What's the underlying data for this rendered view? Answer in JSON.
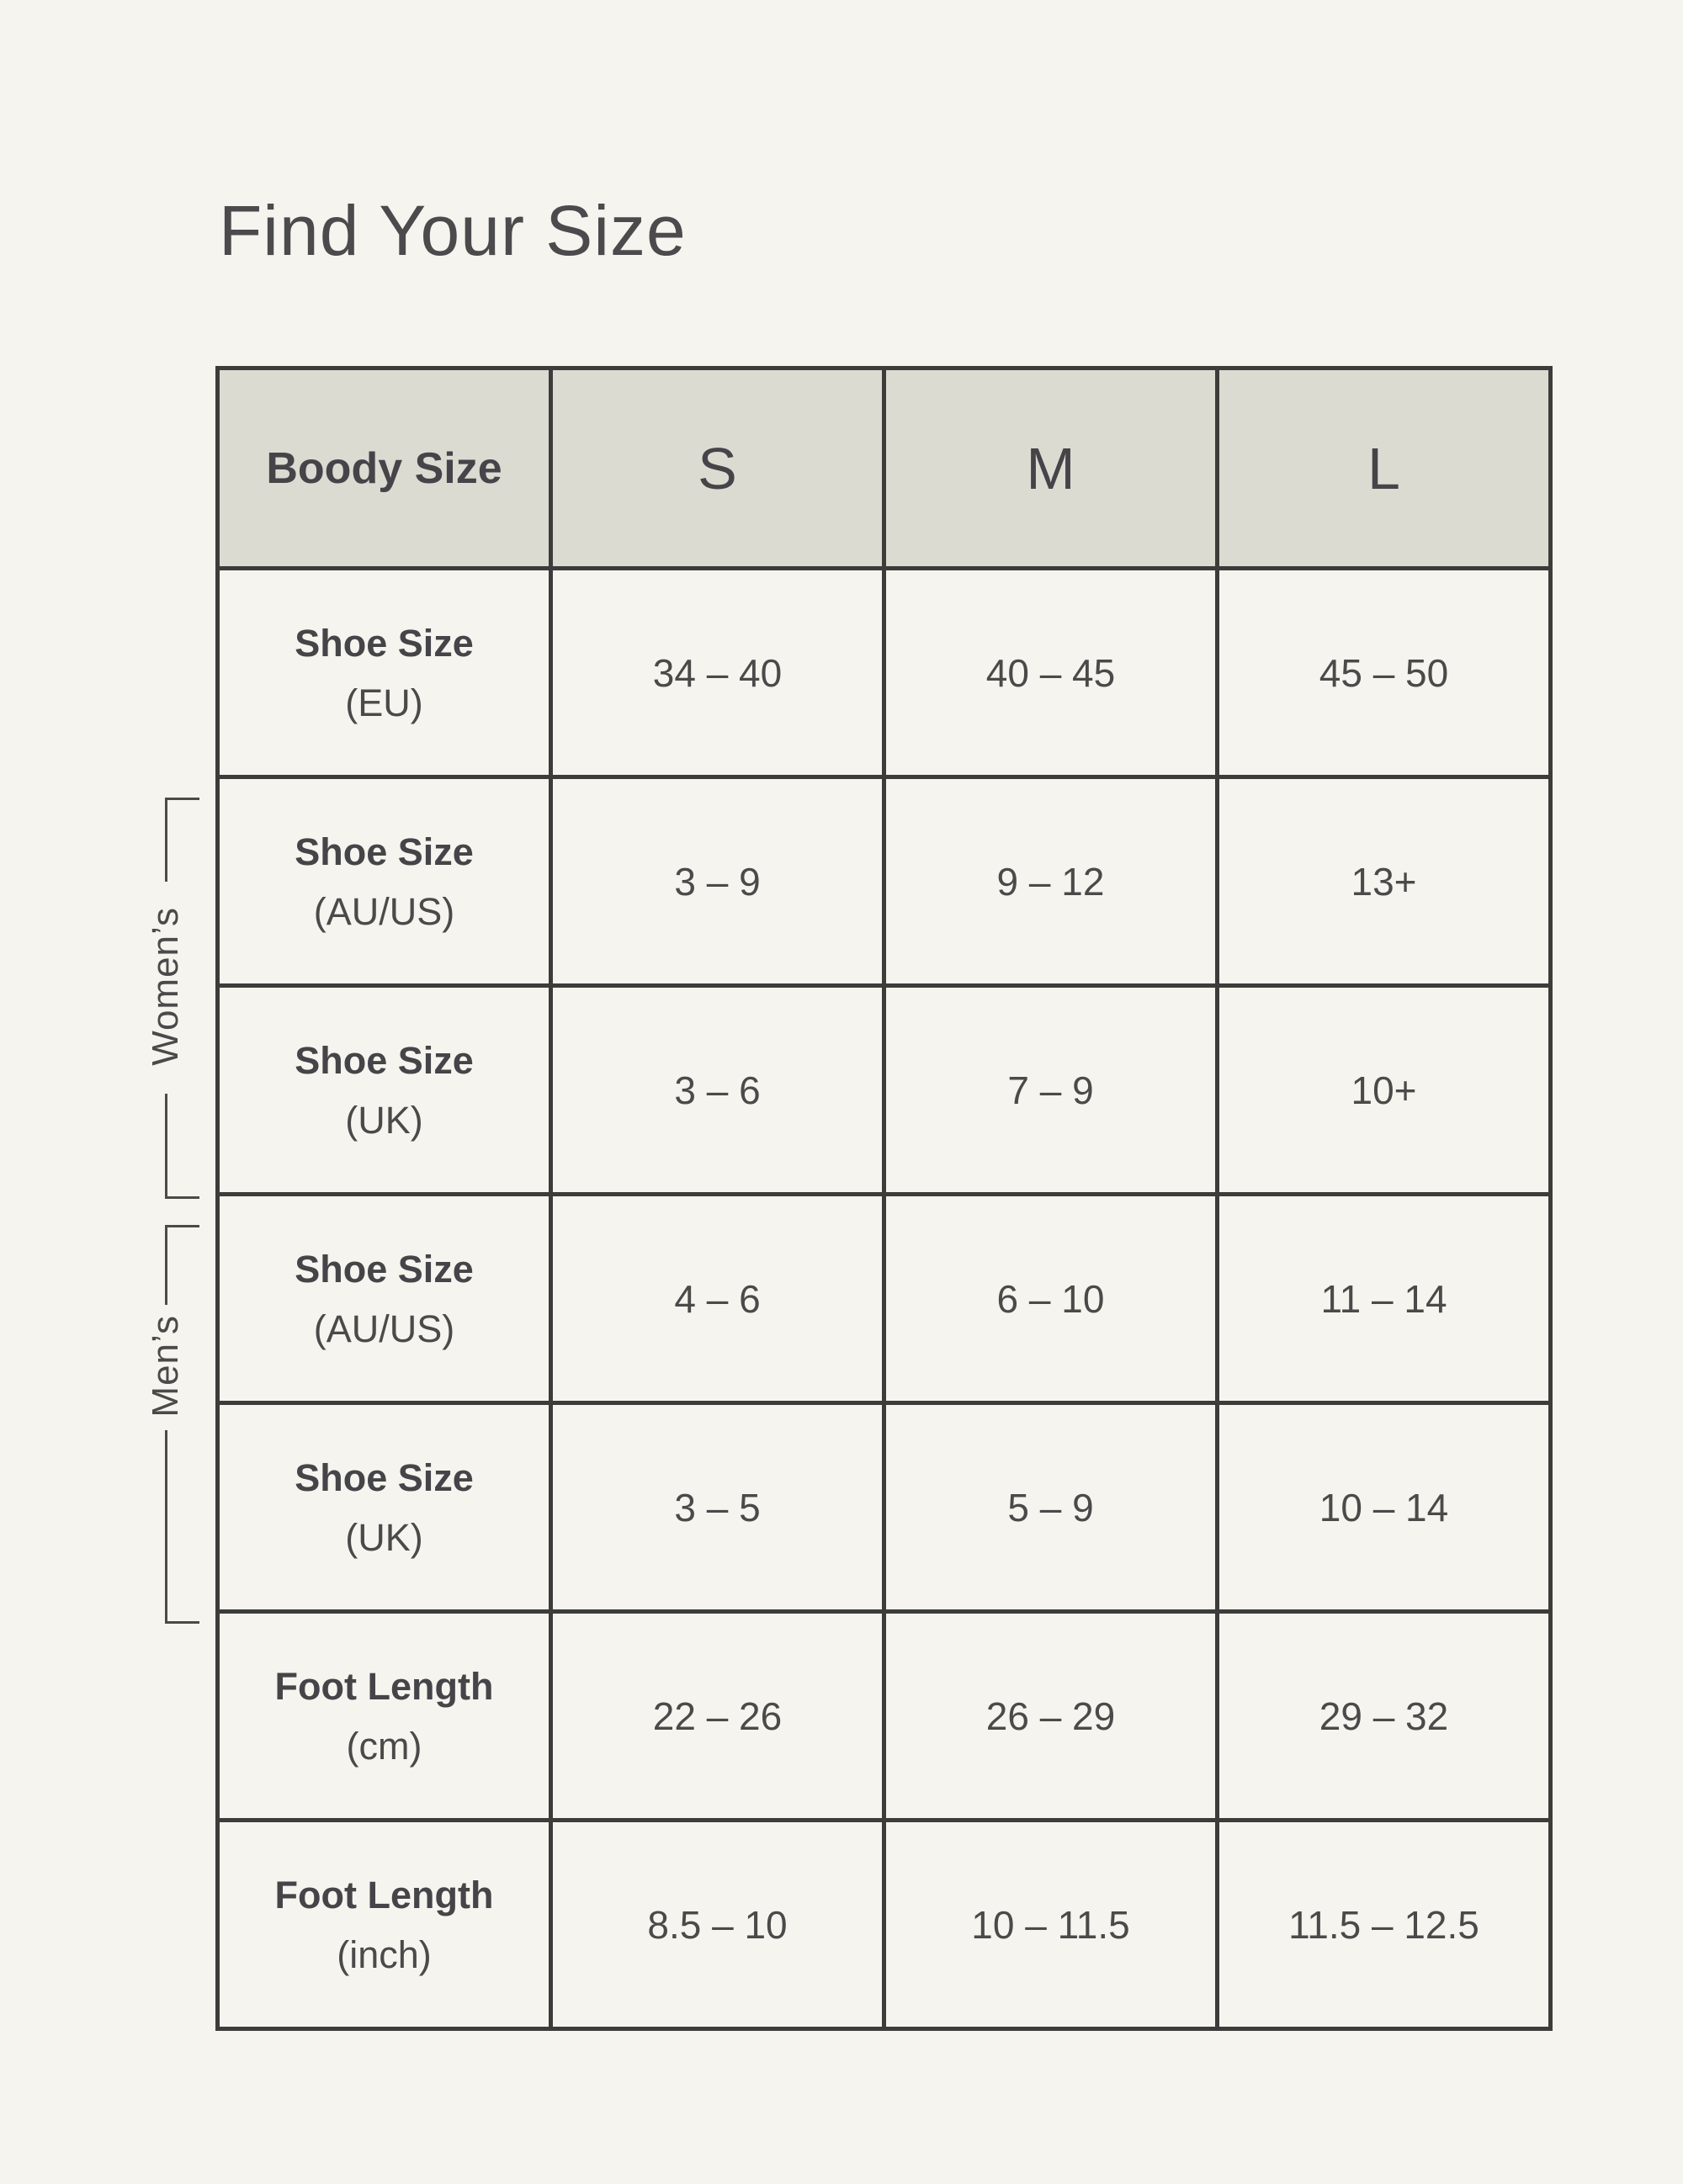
{
  "colors": {
    "page_background": "#f5f4ee",
    "header_background": "#dcdbd2",
    "border": "#3c3c3b",
    "text": "#4a4a4a",
    "title_text": "#4b4b4d"
  },
  "chart_data": {
    "type": "table",
    "title": "Find Your Size",
    "columns": [
      "Boody Size",
      "S",
      "M",
      "L"
    ],
    "rows": [
      {
        "label": "Shoe Size",
        "unit": "(EU)",
        "group": "",
        "values": [
          "34 – 40",
          "40 – 45",
          "45 – 50"
        ]
      },
      {
        "label": "Shoe Size",
        "unit": "(AU/US)",
        "group": "womens",
        "values": [
          "3 – 9",
          "9 – 12",
          "13+"
        ]
      },
      {
        "label": "Shoe Size",
        "unit": "(UK)",
        "group": "womens",
        "values": [
          "3 – 6",
          "7 – 9",
          "10+"
        ]
      },
      {
        "label": "Shoe Size",
        "unit": "(AU/US)",
        "group": "mens",
        "values": [
          "4 – 6",
          "6 – 10",
          "11 – 14"
        ]
      },
      {
        "label": "Shoe Size",
        "unit": "(UK)",
        "group": "mens",
        "values": [
          "3 – 5",
          "5 – 9",
          "10 – 14"
        ]
      },
      {
        "label": "Foot Length",
        "unit": "(cm)",
        "group": "",
        "values": [
          "22 – 26",
          "26 – 29",
          "29 – 32"
        ]
      },
      {
        "label": "Foot Length",
        "unit": "(inch)",
        "group": "",
        "values": [
          "8.5 – 10",
          "10 – 11.5",
          "11.5 – 12.5"
        ]
      }
    ],
    "row_groups": [
      {
        "label": "Women’s",
        "row_indexes": [
          1,
          2
        ]
      },
      {
        "label": "Men’s",
        "row_indexes": [
          3,
          4
        ]
      }
    ],
    "layout_hints": {
      "header_row": true,
      "grid": true,
      "group_brackets_position": "left"
    }
  }
}
